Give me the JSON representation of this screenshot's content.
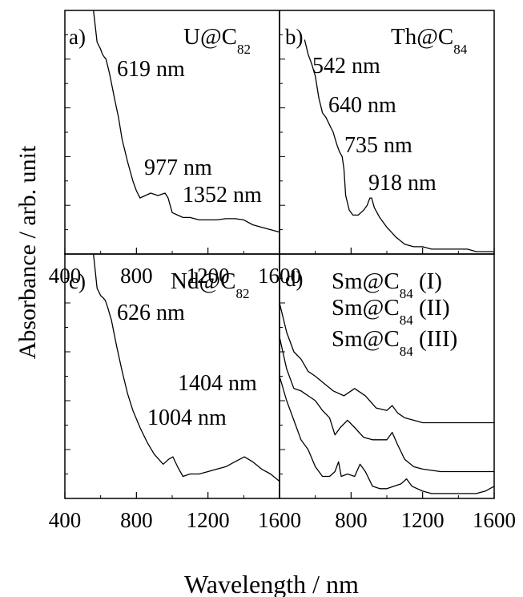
{
  "figure": {
    "ylabel": "Absorbance / arb. unit",
    "xlabel": "Wavelength / nm"
  },
  "chart_data": [
    {
      "type": "line",
      "panel": "a)",
      "compound": {
        "base": "U@C",
        "sub": "82",
        "suffix": ""
      },
      "x_ticks": [
        400,
        800,
        1200,
        1600
      ],
      "x_tick_labels": [
        "400",
        "800",
        "1200",
        "1600"
      ],
      "xlim": [
        400,
        1600
      ],
      "ylim": [
        0,
        1
      ],
      "y_ticks_labeled": false,
      "annotations": [
        {
          "text": "619 nm",
          "x": 619
        },
        {
          "text": "977 nm",
          "x": 977
        },
        {
          "text": "1352 nm",
          "x": 1352
        }
      ],
      "series": [
        {
          "x": [
            560,
            580,
            600,
            610,
            619,
            630,
            650,
            680,
            700,
            720,
            750,
            780,
            800,
            820,
            850,
            880,
            920,
            960,
            977,
            1000,
            1030,
            1060,
            1100,
            1150,
            1200,
            1250,
            1300,
            1352,
            1400,
            1450,
            1500,
            1550,
            1600
          ],
          "y": [
            1.0,
            0.87,
            0.84,
            0.82,
            0.81,
            0.8,
            0.74,
            0.63,
            0.56,
            0.47,
            0.38,
            0.3,
            0.26,
            0.23,
            0.24,
            0.25,
            0.24,
            0.25,
            0.23,
            0.17,
            0.16,
            0.15,
            0.15,
            0.14,
            0.14,
            0.14,
            0.145,
            0.145,
            0.14,
            0.12,
            0.11,
            0.1,
            0.09
          ]
        }
      ]
    },
    {
      "type": "line",
      "panel": "b)",
      "compound": {
        "base": "Th@C",
        "sub": "84",
        "suffix": ""
      },
      "x_ticks": [
        400,
        800,
        1200,
        1600
      ],
      "x_tick_labels": [
        "",
        "",
        "",
        ""
      ],
      "xlim": [
        400,
        1600
      ],
      "ylim": [
        0,
        1
      ],
      "y_ticks_labeled": false,
      "annotations": [
        {
          "text": "542 nm",
          "x": 542
        },
        {
          "text": "640 nm",
          "x": 640
        },
        {
          "text": "735 nm",
          "x": 735
        },
        {
          "text": "918 nm",
          "x": 918
        }
      ],
      "series": [
        {
          "x": [
            540,
            560,
            580,
            600,
            620,
            640,
            660,
            680,
            700,
            720,
            735,
            750,
            760,
            770,
            790,
            810,
            840,
            870,
            890,
            905,
            915,
            930,
            960,
            1000,
            1050,
            1100,
            1150,
            1200,
            1250,
            1300,
            1350,
            1400,
            1450,
            1500,
            1550,
            1600
          ],
          "y": [
            0.88,
            0.82,
            0.78,
            0.73,
            0.64,
            0.58,
            0.56,
            0.53,
            0.5,
            0.45,
            0.42,
            0.4,
            0.35,
            0.24,
            0.18,
            0.16,
            0.16,
            0.18,
            0.2,
            0.23,
            0.23,
            0.19,
            0.15,
            0.11,
            0.07,
            0.04,
            0.03,
            0.03,
            0.02,
            0.02,
            0.02,
            0.02,
            0.02,
            0.01,
            0.01,
            0.01
          ]
        }
      ]
    },
    {
      "type": "line",
      "panel": "c)",
      "compound": {
        "base": "Nd@C",
        "sub": "82",
        "suffix": ""
      },
      "x_ticks": [
        400,
        800,
        1200,
        1600
      ],
      "x_tick_labels": [
        "400",
        "800",
        "1200",
        "1600"
      ],
      "xlim": [
        400,
        1600
      ],
      "ylim": [
        0,
        1
      ],
      "y_ticks_labeled": false,
      "annotations": [
        {
          "text": "626 nm",
          "x": 626
        },
        {
          "text": "1404 nm",
          "x": 1404
        },
        {
          "text": "1004 nm",
          "x": 1004
        }
      ],
      "series": [
        {
          "x": [
            560,
            580,
            600,
            615,
            626,
            640,
            660,
            690,
            720,
            750,
            780,
            820,
            860,
            900,
            950,
            980,
            1004,
            1030,
            1060,
            1100,
            1150,
            1200,
            1250,
            1300,
            1350,
            1404,
            1450,
            1500,
            1550,
            1600
          ],
          "y": [
            1.0,
            0.86,
            0.83,
            0.82,
            0.81,
            0.78,
            0.73,
            0.62,
            0.52,
            0.43,
            0.36,
            0.29,
            0.23,
            0.18,
            0.14,
            0.16,
            0.17,
            0.13,
            0.09,
            0.1,
            0.1,
            0.11,
            0.12,
            0.13,
            0.15,
            0.17,
            0.15,
            0.12,
            0.1,
            0.07
          ]
        }
      ]
    },
    {
      "type": "line",
      "panel": "d)",
      "compound": {
        "base": "Sm@C",
        "sub": "84",
        "suffix": ""
      },
      "legend_entries": [
        {
          "base": "Sm@C",
          "sub": "84",
          "suffix": " (I)"
        },
        {
          "base": "Sm@C",
          "sub": "84",
          "suffix": " (II)"
        },
        {
          "base": "Sm@C",
          "sub": "84",
          "suffix": " (III)"
        }
      ],
      "x_ticks": [
        400,
        800,
        1200,
        1600
      ],
      "x_tick_labels": [
        "",
        "800",
        "1200",
        "1600"
      ],
      "xlim": [
        400,
        1600
      ],
      "ylim": [
        0,
        1
      ],
      "y_ticks_labeled": false,
      "series": [
        {
          "name": "Sm@C84 (I)",
          "x": [
            400,
            440,
            480,
            520,
            560,
            600,
            650,
            700,
            760,
            820,
            880,
            940,
            1000,
            1030,
            1060,
            1100,
            1150,
            1200,
            1300,
            1400,
            1500,
            1600
          ],
          "y": [
            0.8,
            0.68,
            0.6,
            0.57,
            0.52,
            0.5,
            0.47,
            0.44,
            0.42,
            0.45,
            0.42,
            0.37,
            0.36,
            0.38,
            0.35,
            0.33,
            0.32,
            0.31,
            0.31,
            0.31,
            0.31,
            0.31
          ]
        },
        {
          "name": "Sm@C84 (II)",
          "x": [
            400,
            440,
            480,
            520,
            560,
            600,
            640,
            680,
            710,
            740,
            780,
            820,
            870,
            920,
            960,
            1000,
            1030,
            1060,
            1100,
            1150,
            1200,
            1300,
            1400,
            1500,
            1600
          ],
          "y": [
            0.66,
            0.53,
            0.45,
            0.44,
            0.42,
            0.4,
            0.36,
            0.33,
            0.26,
            0.29,
            0.32,
            0.29,
            0.25,
            0.24,
            0.24,
            0.24,
            0.27,
            0.22,
            0.16,
            0.13,
            0.12,
            0.11,
            0.11,
            0.11,
            0.11
          ]
        },
        {
          "name": "Sm@C84 (III)",
          "x": [
            400,
            440,
            480,
            520,
            560,
            600,
            640,
            680,
            710,
            730,
            745,
            780,
            820,
            850,
            880,
            920,
            960,
            1000,
            1040,
            1080,
            1110,
            1140,
            1200,
            1250,
            1300,
            1350,
            1400,
            1450,
            1500,
            1550,
            1600
          ],
          "y": [
            0.5,
            0.4,
            0.32,
            0.24,
            0.2,
            0.13,
            0.09,
            0.09,
            0.11,
            0.15,
            0.09,
            0.1,
            0.09,
            0.14,
            0.11,
            0.05,
            0.04,
            0.04,
            0.05,
            0.06,
            0.08,
            0.05,
            0.03,
            0.02,
            0.02,
            0.02,
            0.02,
            0.02,
            0.02,
            0.03,
            0.05
          ]
        }
      ]
    }
  ]
}
